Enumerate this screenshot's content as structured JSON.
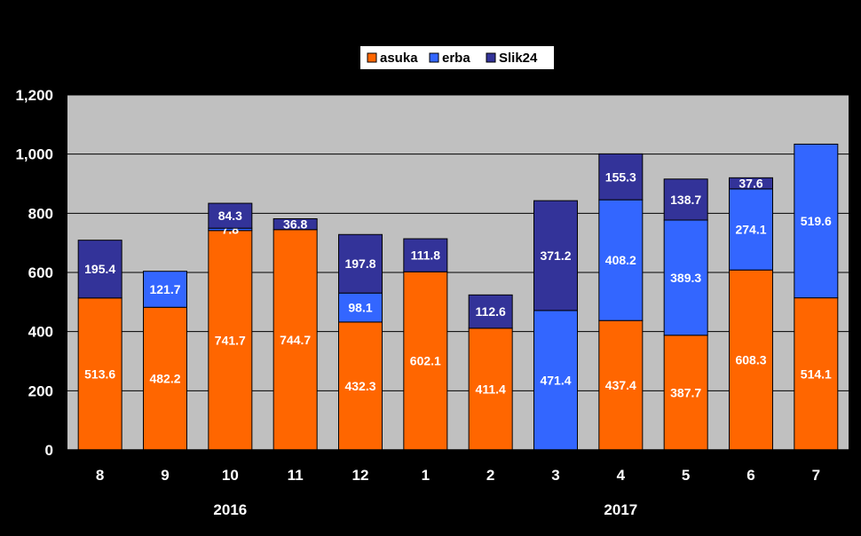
{
  "chart_data": {
    "type": "bar",
    "stacked": true,
    "title": "",
    "xlabel": "",
    "ylabel": "",
    "ylim": [
      0,
      1200
    ],
    "yticks": [
      0,
      200,
      400,
      600,
      800,
      1000,
      1200
    ],
    "ytick_labels": [
      "0",
      "200",
      "400",
      "600",
      "800",
      "1,000",
      "1,200"
    ],
    "grid": true,
    "legend_position": "top-center",
    "categories": [
      "8",
      "9",
      "10",
      "11",
      "12",
      "1",
      "2",
      "3",
      "4",
      "5",
      "6",
      "7"
    ],
    "year_groups": [
      {
        "label": "2016",
        "start": 0,
        "end": 4
      },
      {
        "label": "2017",
        "start": 5,
        "end": 11
      }
    ],
    "series": [
      {
        "name": "asuka",
        "color": "#FF6600",
        "values": [
          513.6,
          482.2,
          741.7,
          744.7,
          432.3,
          602.1,
          411.4,
          null,
          437.4,
          387.7,
          608.3,
          514.1
        ]
      },
      {
        "name": "erba",
        "color": "#3366FF",
        "values": [
          null,
          121.7,
          7.8,
          null,
          98.1,
          null,
          null,
          471.4,
          408.2,
          389.3,
          274.1,
          519.6
        ]
      },
      {
        "name": "Slik24",
        "color": "#333399",
        "values": [
          195.4,
          null,
          84.3,
          36.8,
          197.8,
          111.8,
          112.6,
          371.2,
          155.3,
          138.7,
          37.6,
          null
        ]
      }
    ],
    "colors": {
      "background": "#000000",
      "plot_area": "#C0C0C0",
      "gridline": "#000000",
      "legend_bg": "#FFFFFF"
    }
  }
}
